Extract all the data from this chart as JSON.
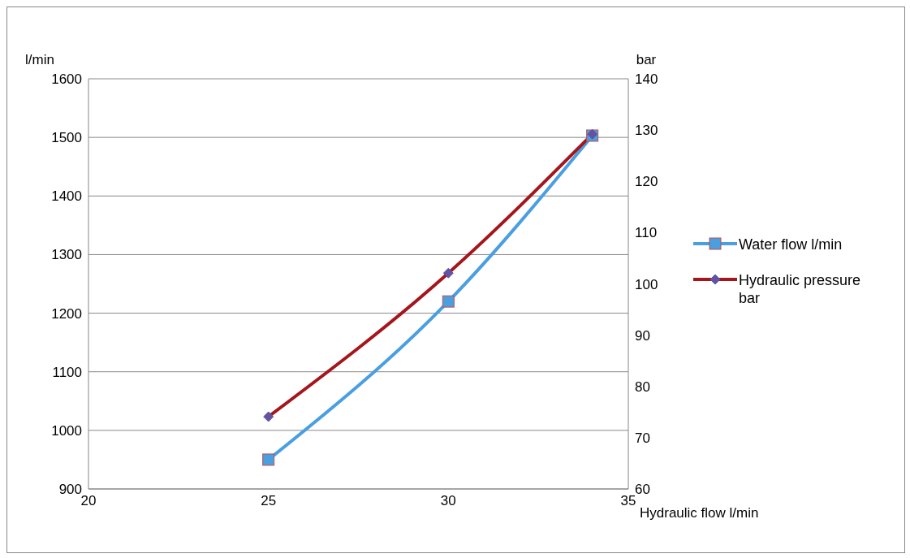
{
  "chart_data": {
    "type": "line",
    "xlabel": "Hydraulic flow l/min",
    "ylabel": "l/min",
    "y2label": "bar",
    "x": [
      25,
      30,
      34
    ],
    "series": [
      {
        "name": "Water flow l/min",
        "color": "#4a9fe0",
        "values": [
          950,
          1220,
          1503
        ],
        "marker": "square"
      },
      {
        "name": "Hydraulic pressure bar",
        "color": "#a5151c",
        "values": [
          74.1,
          102.1,
          129.2
        ],
        "marker": "diamond",
        "axis": "y2"
      }
    ],
    "xlim": [
      20,
      35
    ],
    "xticks": [
      20,
      25,
      30,
      35
    ],
    "ylim": [
      900,
      1600
    ],
    "yticks": [
      900,
      1000,
      1100,
      1200,
      1300,
      1400,
      1500,
      1600
    ],
    "y2lim": [
      60,
      140
    ],
    "y2ticks": [
      60,
      70,
      80,
      90,
      100,
      110,
      120,
      130,
      140
    ],
    "grid": "y",
    "legend": "right",
    "line_style": "solid"
  }
}
